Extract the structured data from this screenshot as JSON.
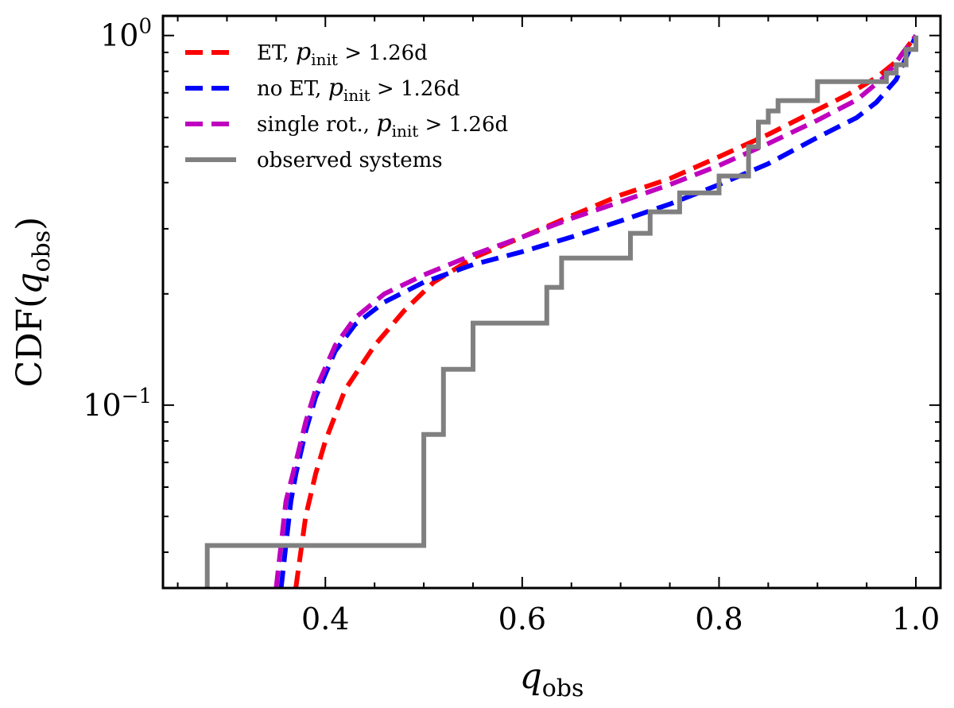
{
  "chart_data": {
    "type": "line",
    "xlabel": "q_obs",
    "ylabel": "CDF(q_obs)",
    "xscale": "linear",
    "yscale": "log",
    "xlim": [
      0.235,
      1.025
    ],
    "ylim": [
      0.032,
      1.13
    ],
    "grid": false,
    "legend_position": "top-left",
    "x_ticks": [
      {
        "value": 0.4,
        "label": "0.4"
      },
      {
        "value": 0.6,
        "label": "0.6"
      },
      {
        "value": 0.8,
        "label": "0.8"
      },
      {
        "value": 1.0,
        "label": "1.0"
      }
    ],
    "y_ticks": [
      {
        "value": 0.1,
        "base": "10",
        "exp": "−1"
      },
      {
        "value": 1.0,
        "base": "10",
        "exp": "0"
      }
    ],
    "series": [
      {
        "name": "ET, p_init > 1.26d",
        "color": "#ff0000",
        "style": "dashed",
        "x": [
          0.37,
          0.375,
          0.38,
          0.39,
          0.4,
          0.42,
          0.45,
          0.48,
          0.51,
          0.55,
          0.6,
          0.65,
          0.7,
          0.75,
          0.8,
          0.85,
          0.9,
          0.93,
          0.96,
          0.98,
          1.0
        ],
        "y": [
          0.032,
          0.04,
          0.05,
          0.065,
          0.08,
          0.11,
          0.145,
          0.18,
          0.215,
          0.25,
          0.285,
          0.325,
          0.37,
          0.41,
          0.47,
          0.54,
          0.63,
          0.69,
          0.77,
          0.85,
          1.0
        ]
      },
      {
        "name": "no ET, p_init > 1.26d",
        "color": "#0000ff",
        "style": "dashed",
        "x": [
          0.355,
          0.36,
          0.365,
          0.37,
          0.38,
          0.39,
          0.41,
          0.43,
          0.46,
          0.5,
          0.55,
          0.6,
          0.65,
          0.7,
          0.75,
          0.8,
          0.85,
          0.9,
          0.94,
          0.96,
          0.98,
          1.0
        ],
        "y": [
          0.032,
          0.042,
          0.055,
          0.065,
          0.085,
          0.105,
          0.14,
          0.165,
          0.19,
          0.215,
          0.24,
          0.26,
          0.285,
          0.315,
          0.35,
          0.395,
          0.45,
          0.53,
          0.6,
          0.66,
          0.76,
          1.0
        ]
      },
      {
        "name": "single rot., p_init > 1.26d",
        "color": "#bf00bf",
        "style": "dashed",
        "x": [
          0.35,
          0.355,
          0.36,
          0.37,
          0.38,
          0.39,
          0.41,
          0.43,
          0.46,
          0.5,
          0.55,
          0.6,
          0.65,
          0.7,
          0.75,
          0.8,
          0.85,
          0.9,
          0.94,
          0.97,
          1.0
        ],
        "y": [
          0.032,
          0.042,
          0.055,
          0.07,
          0.09,
          0.11,
          0.145,
          0.172,
          0.2,
          0.225,
          0.255,
          0.285,
          0.32,
          0.355,
          0.395,
          0.445,
          0.51,
          0.59,
          0.67,
          0.78,
          1.0
        ]
      },
      {
        "name": "observed systems",
        "color": "#808080",
        "style": "solid-step",
        "x": [
          0.28,
          0.28,
          0.5,
          0.5,
          0.52,
          0.52,
          0.55,
          0.55,
          0.625,
          0.625,
          0.64,
          0.64,
          0.71,
          0.71,
          0.73,
          0.73,
          0.76,
          0.76,
          0.8,
          0.8,
          0.83,
          0.83,
          0.84,
          0.84,
          0.85,
          0.85,
          0.86,
          0.86,
          0.9,
          0.9,
          0.97,
          0.97,
          0.98,
          0.98,
          0.99,
          0.99,
          1.0,
          1.0
        ],
        "y": [
          0.032,
          0.0417,
          0.0417,
          0.0833,
          0.0833,
          0.125,
          0.125,
          0.1667,
          0.1667,
          0.2083,
          0.2083,
          0.25,
          0.25,
          0.2917,
          0.2917,
          0.3333,
          0.3333,
          0.375,
          0.375,
          0.4167,
          0.4167,
          0.5,
          0.5,
          0.5833,
          0.5833,
          0.625,
          0.625,
          0.6667,
          0.6667,
          0.75,
          0.75,
          0.7917,
          0.7917,
          0.8333,
          0.8333,
          0.9167,
          0.9167,
          1.0
        ]
      }
    ]
  }
}
